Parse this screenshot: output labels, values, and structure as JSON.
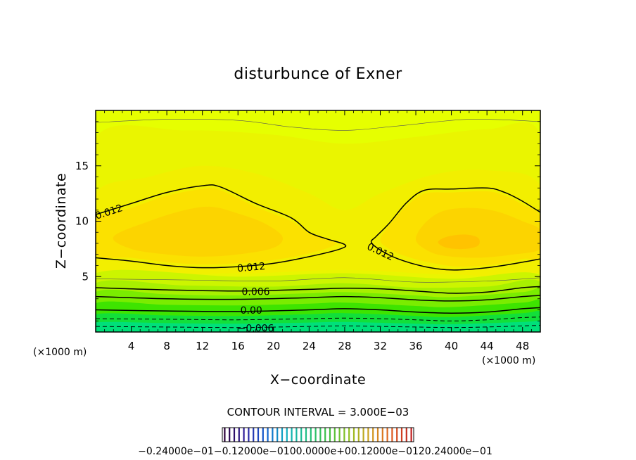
{
  "chart_data": {
    "type": "contour",
    "title": "disturbunce of Exner",
    "xlabel": "X−coordinate",
    "ylabel": "Z−coordinate",
    "x_unit": "(×1000 m)",
    "x_unit_right": "(×1000 m)",
    "xlim": [
      0,
      50
    ],
    "ylim": [
      0,
      20
    ],
    "x_ticks": [
      4,
      8,
      12,
      16,
      20,
      24,
      28,
      32,
      36,
      40,
      44,
      48
    ],
    "x_tick_labels": [
      "4",
      "8",
      "12",
      "16",
      "20",
      "24",
      "28",
      "32",
      "36",
      "40",
      "44",
      "48"
    ],
    "y_ticks": [
      5,
      10,
      15
    ],
    "y_tick_labels": [
      "5",
      "10",
      "15"
    ],
    "contour_interval_text": "CONTOUR INTERVAL = 3.000E−03",
    "contour_interval": 0.003,
    "contour_labels": [
      {
        "text": "0.012",
        "x": 1.5,
        "z": 10.8,
        "angle": -18
      },
      {
        "text": "0.012",
        "x": 17.5,
        "z": 5.8,
        "angle": -5
      },
      {
        "text": "0.012",
        "x": 32.0,
        "z": 7.2,
        "angle": 25
      },
      {
        "text": "0.006",
        "x": 18.0,
        "z": 3.6,
        "angle": 0
      },
      {
        "text": "0.00",
        "x": 17.5,
        "z": 1.9,
        "angle": 0
      },
      {
        "text": "−0.006",
        "x": 18.0,
        "z": 0.3,
        "angle": 0
      }
    ],
    "contour_lines": [
      {
        "level": 0.012,
        "style": "solid",
        "points": [
          [
            0,
            10.6
          ],
          [
            4,
            11.6
          ],
          [
            8,
            12.6
          ],
          [
            12,
            13.2
          ],
          [
            14,
            13.1
          ],
          [
            18,
            11.6
          ],
          [
            22,
            10.3
          ],
          [
            24,
            9.0
          ],
          [
            26,
            8.4
          ],
          [
            28,
            7.9
          ],
          [
            27.5,
            7.5
          ],
          [
            24,
            6.8
          ],
          [
            20,
            6.2
          ],
          [
            16,
            5.9
          ],
          [
            12,
            5.8
          ],
          [
            8,
            6.0
          ],
          [
            4,
            6.4
          ],
          [
            0,
            6.7
          ]
        ]
      },
      {
        "level": 0.012,
        "style": "solid",
        "points": [
          [
            50,
            10.8
          ],
          [
            48,
            11.8
          ],
          [
            46,
            12.6
          ],
          [
            44,
            13.0
          ],
          [
            40,
            12.9
          ],
          [
            37,
            12.8
          ],
          [
            35,
            11.7
          ],
          [
            33,
            9.8
          ],
          [
            31.5,
            8.6
          ],
          [
            31,
            8.1
          ],
          [
            32,
            7.4
          ],
          [
            34,
            6.6
          ],
          [
            37,
            5.9
          ],
          [
            40,
            5.6
          ],
          [
            44,
            5.8
          ],
          [
            48,
            6.3
          ],
          [
            50,
            6.6
          ]
        ]
      },
      {
        "level": 0.006,
        "style": "solid",
        "points": [
          [
            0,
            4.0
          ],
          [
            8,
            3.8
          ],
          [
            16,
            3.7
          ],
          [
            24,
            3.85
          ],
          [
            28,
            3.95
          ],
          [
            32,
            3.9
          ],
          [
            36,
            3.7
          ],
          [
            40,
            3.5
          ],
          [
            44,
            3.6
          ],
          [
            48,
            4.0
          ],
          [
            50,
            4.1
          ]
        ]
      },
      {
        "level": 0.003,
        "style": "solid",
        "points": [
          [
            0,
            3.2
          ],
          [
            8,
            3.0
          ],
          [
            16,
            2.95
          ],
          [
            24,
            3.1
          ],
          [
            28,
            3.2
          ],
          [
            32,
            3.1
          ],
          [
            36,
            2.9
          ],
          [
            40,
            2.8
          ],
          [
            44,
            2.9
          ],
          [
            48,
            3.2
          ],
          [
            50,
            3.3
          ]
        ]
      },
      {
        "level": 0.0,
        "style": "solid",
        "points": [
          [
            0,
            2.0
          ],
          [
            8,
            1.9
          ],
          [
            16,
            1.85
          ],
          [
            24,
            2.0
          ],
          [
            28,
            2.1
          ],
          [
            32,
            2.0
          ],
          [
            36,
            1.8
          ],
          [
            40,
            1.7
          ],
          [
            44,
            1.8
          ],
          [
            48,
            2.1
          ],
          [
            50,
            2.2
          ]
        ]
      },
      {
        "level": -0.003,
        "style": "dashed",
        "points": [
          [
            0,
            1.2
          ],
          [
            8,
            1.15
          ],
          [
            16,
            1.1
          ],
          [
            24,
            1.2
          ],
          [
            28,
            1.25
          ],
          [
            32,
            1.2
          ],
          [
            36,
            1.1
          ],
          [
            40,
            1.0
          ],
          [
            44,
            1.1
          ],
          [
            48,
            1.3
          ],
          [
            50,
            1.35
          ]
        ]
      },
      {
        "level": -0.006,
        "style": "dashed",
        "points": [
          [
            0,
            0.5
          ],
          [
            8,
            0.45
          ],
          [
            16,
            0.4
          ],
          [
            24,
            0.5
          ],
          [
            28,
            0.55
          ],
          [
            32,
            0.5
          ],
          [
            36,
            0.45
          ],
          [
            40,
            0.4
          ],
          [
            44,
            0.45
          ],
          [
            48,
            0.55
          ],
          [
            50,
            0.6
          ]
        ]
      },
      {
        "level": 0.009,
        "style": "thin",
        "points": [
          [
            0,
            18.9
          ],
          [
            8,
            19.2
          ],
          [
            16,
            19.1
          ],
          [
            22,
            18.5
          ],
          [
            28,
            18.2
          ],
          [
            34,
            18.6
          ],
          [
            42,
            19.2
          ],
          [
            50,
            19.0
          ]
        ]
      },
      {
        "level": 0.009,
        "style": "thin",
        "points": [
          [
            0,
            4.8
          ],
          [
            10,
            4.7
          ],
          [
            20,
            4.6
          ],
          [
            28,
            4.9
          ],
          [
            36,
            4.5
          ],
          [
            44,
            4.6
          ],
          [
            50,
            4.9
          ]
        ]
      }
    ],
    "fill_bands": [
      {
        "color": "#e6ff00",
        "points": "full"
      },
      {
        "color": "#eaf500",
        "points": [
          [
            0,
            17.5
          ],
          [
            10,
            18.2
          ],
          [
            20,
            17.8
          ],
          [
            28,
            17.0
          ],
          [
            36,
            17.6
          ],
          [
            44,
            18.3
          ],
          [
            50,
            17.8
          ],
          [
            50,
            5.2
          ],
          [
            0,
            5.3
          ]
        ]
      },
      {
        "color": "#f2ef00",
        "points": [
          [
            0,
            12.5
          ],
          [
            6,
            14.0
          ],
          [
            12,
            15.0
          ],
          [
            18,
            14.3
          ],
          [
            24,
            12.5
          ],
          [
            28,
            11.0
          ],
          [
            32,
            12.5
          ],
          [
            38,
            14.2
          ],
          [
            44,
            14.6
          ],
          [
            50,
            13.2
          ],
          [
            50,
            5.6
          ],
          [
            40,
            5.2
          ],
          [
            28,
            5.6
          ],
          [
            16,
            5.3
          ],
          [
            0,
            5.8
          ]
        ]
      },
      {
        "color": "#fbe100",
        "points": [
          [
            0,
            10.2
          ],
          [
            4,
            11.2
          ],
          [
            8,
            12.3
          ],
          [
            12,
            12.9
          ],
          [
            14,
            12.8
          ],
          [
            18,
            11.3
          ],
          [
            22,
            10.0
          ],
          [
            24,
            8.9
          ],
          [
            27,
            8.0
          ],
          [
            24,
            7.1
          ],
          [
            20,
            6.5
          ],
          [
            16,
            6.2
          ],
          [
            12,
            6.1
          ],
          [
            8,
            6.3
          ],
          [
            4,
            6.7
          ],
          [
            0,
            7.0
          ]
        ]
      },
      {
        "color": "#fbe100",
        "points": [
          [
            50,
            10.4
          ],
          [
            48,
            11.5
          ],
          [
            46,
            12.3
          ],
          [
            44,
            12.7
          ],
          [
            40,
            12.6
          ],
          [
            37,
            12.5
          ],
          [
            35,
            11.4
          ],
          [
            33,
            9.6
          ],
          [
            32,
            8.3
          ],
          [
            33,
            7.5
          ],
          [
            35,
            6.8
          ],
          [
            38,
            6.2
          ],
          [
            41,
            5.9
          ],
          [
            45,
            6.1
          ],
          [
            48,
            6.6
          ],
          [
            50,
            6.9
          ]
        ]
      },
      {
        "color": "#fcd400",
        "points": [
          [
            2,
            8.6
          ],
          [
            6,
            10.0
          ],
          [
            10,
            11.0
          ],
          [
            13,
            11.3
          ],
          [
            16,
            10.7
          ],
          [
            19,
            9.8
          ],
          [
            21,
            8.6
          ],
          [
            20,
            7.6
          ],
          [
            16,
            7.0
          ],
          [
            12,
            6.8
          ],
          [
            8,
            7.0
          ],
          [
            4,
            7.5
          ]
        ]
      },
      {
        "color": "#fcd400",
        "points": [
          [
            36,
            8.4
          ],
          [
            37,
            9.8
          ],
          [
            39,
            10.9
          ],
          [
            42,
            11.2
          ],
          [
            45,
            10.9
          ],
          [
            48,
            10.0
          ],
          [
            50,
            9.2
          ],
          [
            50,
            7.5
          ],
          [
            47,
            7.0
          ],
          [
            43,
            6.7
          ],
          [
            39,
            6.9
          ],
          [
            37,
            7.5
          ]
        ]
      },
      {
        "color": "#ffc300",
        "points": [
          [
            38.5,
            8.1
          ],
          [
            39.5,
            8.6
          ],
          [
            41.5,
            8.8
          ],
          [
            43,
            8.5
          ],
          [
            43,
            7.8
          ],
          [
            41.5,
            7.5
          ],
          [
            39.5,
            7.6
          ]
        ]
      },
      {
        "color": "#ccf500",
        "points": [
          [
            0,
            5.3
          ],
          [
            16,
            5.0
          ],
          [
            28,
            5.3
          ],
          [
            40,
            4.8
          ],
          [
            50,
            5.1
          ],
          [
            50,
            0
          ],
          [
            0,
            0
          ]
        ]
      },
      {
        "color": "#a8f000",
        "points": [
          [
            0,
            4.4
          ],
          [
            10,
            4.2
          ],
          [
            20,
            4.1
          ],
          [
            28,
            4.4
          ],
          [
            36,
            4.0
          ],
          [
            44,
            4.1
          ],
          [
            50,
            4.5
          ],
          [
            50,
            0
          ],
          [
            0,
            0
          ]
        ]
      },
      {
        "color": "#7aec00",
        "points": [
          [
            0,
            3.6
          ],
          [
            8,
            3.4
          ],
          [
            16,
            3.3
          ],
          [
            24,
            3.5
          ],
          [
            28,
            3.6
          ],
          [
            36,
            3.3
          ],
          [
            40,
            3.15
          ],
          [
            48,
            3.6
          ],
          [
            50,
            3.7
          ],
          [
            50,
            0
          ],
          [
            0,
            0
          ]
        ]
      },
      {
        "color": "#3ee400",
        "points": [
          [
            0,
            2.6
          ],
          [
            8,
            2.45
          ],
          [
            16,
            2.4
          ],
          [
            24,
            2.55
          ],
          [
            28,
            2.65
          ],
          [
            36,
            2.35
          ],
          [
            40,
            2.25
          ],
          [
            48,
            2.65
          ],
          [
            50,
            2.75
          ],
          [
            50,
            0
          ],
          [
            0,
            0
          ]
        ]
      },
      {
        "color": "#12df3a",
        "points": [
          [
            0,
            1.6
          ],
          [
            8,
            1.5
          ],
          [
            16,
            1.45
          ],
          [
            24,
            1.6
          ],
          [
            28,
            1.7
          ],
          [
            36,
            1.45
          ],
          [
            40,
            1.35
          ],
          [
            48,
            1.7
          ],
          [
            50,
            1.8
          ],
          [
            50,
            0
          ],
          [
            0,
            0
          ]
        ]
      },
      {
        "color": "#00e07a",
        "points": [
          [
            0,
            0.85
          ],
          [
            8,
            0.8
          ],
          [
            16,
            0.75
          ],
          [
            24,
            0.85
          ],
          [
            28,
            0.9
          ],
          [
            36,
            0.75
          ],
          [
            40,
            0.7
          ],
          [
            48,
            0.9
          ],
          [
            50,
            0.95
          ],
          [
            50,
            0
          ],
          [
            0,
            0
          ]
        ]
      }
    ],
    "colorbar": {
      "labels_text": "−0.24000e−01−0.12000e−0100.0000e+00.12000e−0120.24000e−01",
      "labels": [
        "−0.24000e−01",
        "−0.12000e−01",
        "0.0000e+00",
        "0.12000e−01",
        "0.24000e−01"
      ],
      "min": -0.024,
      "max": 0.024,
      "stops": [
        "#2a003a",
        "#3020a0",
        "#1060d0",
        "#10b0c0",
        "#20c080",
        "#40c040",
        "#90c020",
        "#d0a020",
        "#e06020",
        "#c02020"
      ]
    }
  }
}
